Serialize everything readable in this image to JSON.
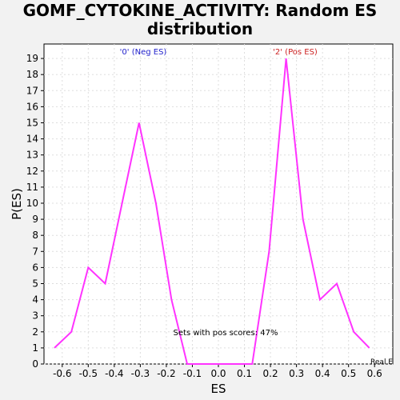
{
  "chart_data": {
    "type": "line",
    "title_line1": "GOMF_CYTOKINE_ACTIVITY: Random ES",
    "title_line2": "distribution",
    "xlabel": "ES",
    "ylabel": "P(ES)",
    "xlim": [
      -0.67,
      0.67
    ],
    "ylim": [
      0,
      19.9
    ],
    "x_ticks": [
      -0.6,
      -0.5,
      -0.4,
      -0.3,
      -0.2,
      -0.1,
      0.0,
      0.1,
      0.2,
      0.3,
      0.4,
      0.5,
      0.6
    ],
    "x_tick_labels": [
      "-0.6",
      "-0.5",
      "-0.4",
      "-0.3",
      "-0.2",
      "-0.1",
      "0.0",
      "0.1",
      "0.2",
      "0.3",
      "0.4",
      "0.5",
      "0.6"
    ],
    "y_ticks": [
      0,
      1,
      2,
      3,
      4,
      5,
      6,
      7,
      8,
      9,
      10,
      11,
      12,
      13,
      14,
      15,
      16,
      17,
      18,
      19
    ],
    "grid": true,
    "series": [
      {
        "color": "#ff33ff",
        "x": [
          -0.63,
          -0.565,
          -0.5,
          -0.435,
          -0.37,
          -0.305,
          -0.24,
          -0.18,
          -0.12,
          -0.06,
          0.0,
          0.06,
          0.13,
          0.195,
          0.26,
          0.325,
          0.39,
          0.455,
          0.52,
          0.58
        ],
        "y": [
          1,
          2,
          6,
          5,
          10,
          15,
          10,
          4,
          0,
          0,
          0,
          0,
          0,
          7,
          19,
          9,
          4,
          5,
          2,
          1
        ]
      }
    ],
    "annotations": {
      "neg_label": "'0' (Neg ES)",
      "pos_label": "'2' (Pos ES)",
      "pos_scores": "Sets with pos scores: 47%",
      "real_label": "Real E"
    },
    "colors": {
      "neg_label": "#2222cc",
      "pos_label": "#cc2222",
      "line": "#ff33ff"
    }
  }
}
